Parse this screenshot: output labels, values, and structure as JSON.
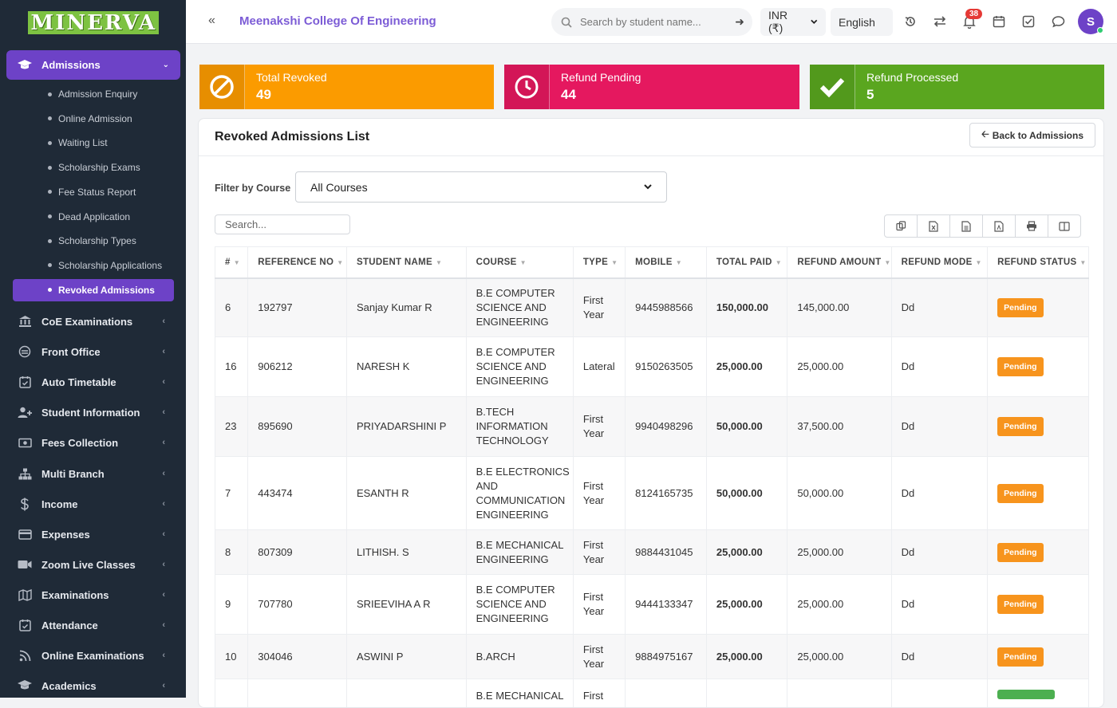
{
  "app": {
    "logo": "MINERVA",
    "college": "Meenakshi College Of Engineering"
  },
  "topbar": {
    "search_placeholder": "Search by student name...",
    "currency": "INR (₹)",
    "language": "English",
    "notification_count": "38",
    "avatar_initial": "S"
  },
  "sidebar": {
    "active_section": "Admissions",
    "sub_items": [
      "Admission Enquiry",
      "Online Admission",
      "Waiting List",
      "Scholarship Exams",
      "Fee Status Report",
      "Dead Application",
      "Scholarship Types",
      "Scholarship Applications",
      "Revoked Admissions"
    ],
    "nav_items": [
      {
        "label": "CoE Examinations",
        "icon": "bank-icon"
      },
      {
        "label": "Front Office",
        "icon": "front-office-icon"
      },
      {
        "label": "Auto Timetable",
        "icon": "calendar-check-icon"
      },
      {
        "label": "Student Information",
        "icon": "user-plus-icon"
      },
      {
        "label": "Fees Collection",
        "icon": "money-icon"
      },
      {
        "label": "Multi Branch",
        "icon": "sitemap-icon"
      },
      {
        "label": "Income",
        "icon": "dollar-icon"
      },
      {
        "label": "Expenses",
        "icon": "credit-card-icon"
      },
      {
        "label": "Zoom Live Classes",
        "icon": "video-icon"
      },
      {
        "label": "Examinations",
        "icon": "map-icon"
      },
      {
        "label": "Attendance",
        "icon": "calendar-check-icon"
      },
      {
        "label": "Online Examinations",
        "icon": "rss-icon"
      },
      {
        "label": "Academics",
        "icon": "graduation-cap-icon"
      }
    ]
  },
  "stats": [
    {
      "label": "Total Revoked",
      "value": "49",
      "color": "#fb9b00",
      "icon": "ban-icon"
    },
    {
      "label": "Refund Pending",
      "value": "44",
      "color": "#e5185f",
      "icon": "clock-icon"
    },
    {
      "label": "Refund Processed",
      "value": "5",
      "color": "#5aa61f",
      "icon": "check-icon"
    }
  ],
  "card": {
    "title": "Revoked Admissions List",
    "back_label": "Back to Admissions",
    "filter_label": "Filter by Course",
    "filter_value": "All Courses",
    "search_placeholder": "Search..."
  },
  "table": {
    "headers": [
      "#",
      "REFERENCE NO",
      "STUDENT NAME",
      "COURSE",
      "TYPE",
      "MOBILE",
      "TOTAL PAID",
      "REFUND AMOUNT",
      "REFUND MODE",
      "REFUND STATUS"
    ],
    "rows": [
      {
        "n": "6",
        "ref": "192797",
        "name": "Sanjay Kumar R",
        "course": [
          "B.E COMPUTER",
          "SCIENCE AND",
          "ENGINEERING"
        ],
        "type": [
          "First",
          "Year"
        ],
        "mobile": "9445988566",
        "paid": "150,000.00",
        "refund": "145,000.00",
        "mode": "Dd",
        "status": "Pending"
      },
      {
        "n": "16",
        "ref": "906212",
        "name": "NARESH K",
        "course": [
          "B.E COMPUTER",
          "SCIENCE AND",
          "ENGINEERING"
        ],
        "type": [
          "Lateral"
        ],
        "mobile": "9150263505",
        "paid": "25,000.00",
        "refund": "25,000.00",
        "mode": "Dd",
        "status": "Pending"
      },
      {
        "n": "23",
        "ref": "895690",
        "name": "PRIYADARSHINI P",
        "course": [
          "B.TECH",
          "INFORMATION",
          "TECHNOLOGY"
        ],
        "type": [
          "First",
          "Year"
        ],
        "mobile": "9940498296",
        "paid": "50,000.00",
        "refund": "37,500.00",
        "mode": "Dd",
        "status": "Pending"
      },
      {
        "n": "7",
        "ref": "443474",
        "name": "ESANTH R",
        "course": [
          "B.E ELECTRONICS",
          "AND",
          "COMMUNICATION",
          "ENGINEERING"
        ],
        "type": [
          "First",
          "Year"
        ],
        "mobile": "8124165735",
        "paid": "50,000.00",
        "refund": "50,000.00",
        "mode": "Dd",
        "status": "Pending"
      },
      {
        "n": "8",
        "ref": "807309",
        "name": "LITHISH. S",
        "course": [
          "B.E MECHANICAL",
          "ENGINEERING"
        ],
        "type": [
          "First",
          "Year"
        ],
        "mobile": "9884431045",
        "paid": "25,000.00",
        "refund": "25,000.00",
        "mode": "Dd",
        "status": "Pending"
      },
      {
        "n": "9",
        "ref": "707780",
        "name": "SRIEEVIHA A R",
        "course": [
          "B.E COMPUTER",
          "SCIENCE AND",
          "ENGINEERING"
        ],
        "type": [
          "First",
          "Year"
        ],
        "mobile": "9444133347",
        "paid": "25,000.00",
        "refund": "25,000.00",
        "mode": "Dd",
        "status": "Pending"
      },
      {
        "n": "10",
        "ref": "304046",
        "name": "ASWINI P",
        "course": [
          "B.ARCH"
        ],
        "type": [
          "First",
          "Year"
        ],
        "mobile": "9884975167",
        "paid": "25,000.00",
        "refund": "25,000.00",
        "mode": "Dd",
        "status": "Pending"
      },
      {
        "n": "",
        "ref": "",
        "name": "",
        "course": [
          "B.E MECHANICAL"
        ],
        "type": [
          "First"
        ],
        "mobile": "",
        "paid": "",
        "refund": "",
        "mode": "",
        "status": ""
      }
    ]
  }
}
